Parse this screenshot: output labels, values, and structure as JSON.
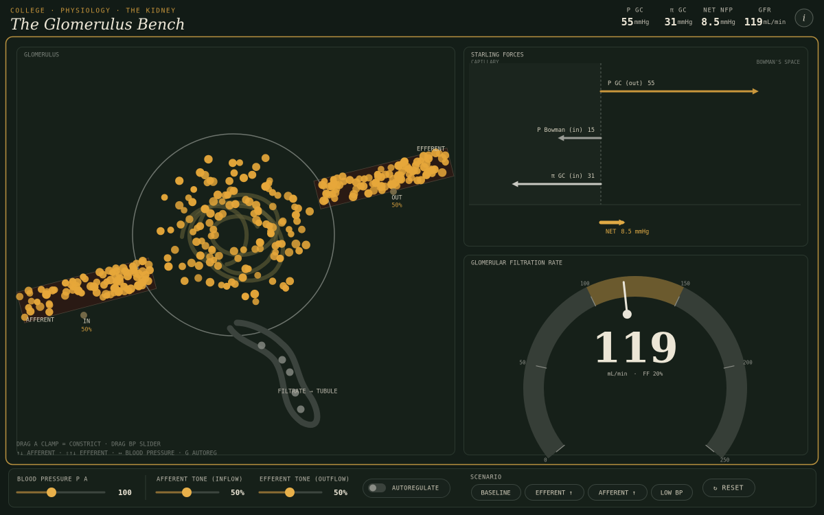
{
  "header": {
    "breadcrumb": "COLLEGE · PHYSIOLOGY · THE KIDNEY",
    "title": "The Glomerulus Bench",
    "info": "i"
  },
  "stats": [
    {
      "label": "P GC",
      "value": "55",
      "unit": "mmHg"
    },
    {
      "label": "π GC",
      "value": "31",
      "unit": "mmHg"
    },
    {
      "label": "NET NFP",
      "value": "8.5",
      "unit": "mmHg"
    },
    {
      "label": "GFR",
      "value": "119",
      "unit": "mL/min"
    }
  ],
  "glomerulus": {
    "title": "GLOMERULUS",
    "afferent": "AFFERENT",
    "efferent": "EFFERENT",
    "inlet": {
      "label": "IN",
      "value": "50%"
    },
    "outlet": {
      "label": "OUT",
      "value": "50%"
    },
    "tubule": "FILTRATE → TUBULE",
    "hints": [
      "DRAG A CLAMP = CONSTRICT · DRAG BP SLIDER",
      "↑↓ AFFERENT · ⇧↑↓ EFFERENT · ↔ BLOOD PRESSURE · G AUTOREG"
    ]
  },
  "starling": {
    "title": "STARLING FORCES",
    "left": "CAPILLARY",
    "right": "BOWMAN'S SPACE",
    "forces": [
      {
        "label": "P GC  (out)",
        "value": 55,
        "direction": "out",
        "color": "#c8963c"
      },
      {
        "label": "P Bowman (in)",
        "value": 15,
        "direction": "in",
        "color": "#9a9c96"
      },
      {
        "label": "π GC  (in)",
        "value": 31,
        "direction": "in",
        "color": "#c9c9c2"
      }
    ],
    "net": {
      "label": "NET",
      "value": 8.5,
      "unit": "mmHg",
      "color": "#e0aa45"
    }
  },
  "gfr": {
    "title": "GLOMERULAR FILTRATION RATE",
    "value": 119,
    "unit": "mL/min",
    "separator": "·",
    "ff": "FF 20%",
    "lim": [
      0,
      250
    ],
    "ticks": [
      0,
      50,
      100,
      150,
      200,
      250
    ],
    "highlight": [
      100,
      150
    ]
  },
  "controls": {
    "sliders": [
      {
        "label": "BLOOD PRESSURE P A",
        "value": "100"
      },
      {
        "label": "AFFERENT TONE (INFLOW)",
        "value": "50%"
      },
      {
        "label": "EFFERENT TONE (OUTFLOW)",
        "value": "50%"
      }
    ],
    "toggle": "AUTOREGULATE",
    "scenario_title": "SCENARIO",
    "scenarios": [
      "BASELINE",
      "EFFERENT ↑",
      "AFFERENT ↑",
      "LOW BP"
    ],
    "reset": "↻ RESET"
  }
}
